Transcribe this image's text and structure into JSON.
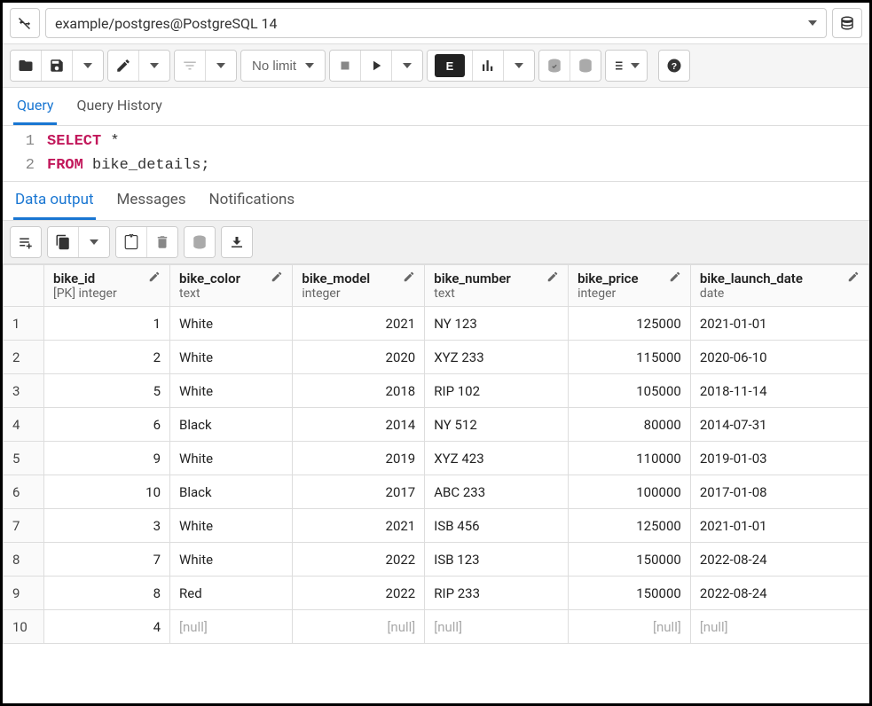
{
  "connection": {
    "label": "example/postgres@PostgreSQL 14"
  },
  "toolbar": {
    "nolimit_label": "No limit"
  },
  "query_tabs": {
    "query": "Query",
    "history": "Query History"
  },
  "sql": {
    "line1_keyword": "SELECT",
    "line1_rest": " *",
    "line2_keyword": "FROM",
    "line2_rest": " bike_details;",
    "line_numbers": [
      "1",
      "2"
    ]
  },
  "output_tabs": {
    "data": "Data output",
    "messages": "Messages",
    "notifications": "Notifications"
  },
  "columns": [
    {
      "name": "bike_id",
      "type": "[PK] integer",
      "align": "num"
    },
    {
      "name": "bike_color",
      "type": "text",
      "align": "text"
    },
    {
      "name": "bike_model",
      "type": "integer",
      "align": "num"
    },
    {
      "name": "bike_number",
      "type": "text",
      "align": "text"
    },
    {
      "name": "bike_price",
      "type": "integer",
      "align": "num"
    },
    {
      "name": "bike_launch_date",
      "type": "date",
      "align": "text"
    }
  ],
  "rows": [
    {
      "n": "1",
      "cells": [
        "1",
        "White",
        "2021",
        "NY 123",
        "125000",
        "2021-01-01"
      ]
    },
    {
      "n": "2",
      "cells": [
        "2",
        "White",
        "2020",
        "XYZ 233",
        "115000",
        "2020-06-10"
      ]
    },
    {
      "n": "3",
      "cells": [
        "5",
        "White",
        "2018",
        "RIP 102",
        "105000",
        "2018-11-14"
      ]
    },
    {
      "n": "4",
      "cells": [
        "6",
        "Black",
        "2014",
        "NY 512",
        "80000",
        "2014-07-31"
      ]
    },
    {
      "n": "5",
      "cells": [
        "9",
        "White",
        "2019",
        "XYZ 423",
        "110000",
        "2019-01-03"
      ]
    },
    {
      "n": "6",
      "cells": [
        "10",
        "Black",
        "2017",
        "ABC 233",
        "100000",
        "2017-01-08"
      ]
    },
    {
      "n": "7",
      "cells": [
        "3",
        "White",
        "2021",
        "ISB 456",
        "125000",
        "2021-01-01"
      ]
    },
    {
      "n": "8",
      "cells": [
        "7",
        "White",
        "2022",
        "ISB 123",
        "150000",
        "2022-08-24"
      ]
    },
    {
      "n": "9",
      "cells": [
        "8",
        "Red",
        "2022",
        "RIP 233",
        "150000",
        "2022-08-24"
      ]
    },
    {
      "n": "10",
      "cells": [
        "4",
        null,
        null,
        null,
        null,
        null
      ]
    }
  ],
  "null_label": "[null]",
  "colors": {
    "accent": "#1976d2",
    "keyword": "#c2185b",
    "border": "#dddddd",
    "background": "#ffffff"
  }
}
